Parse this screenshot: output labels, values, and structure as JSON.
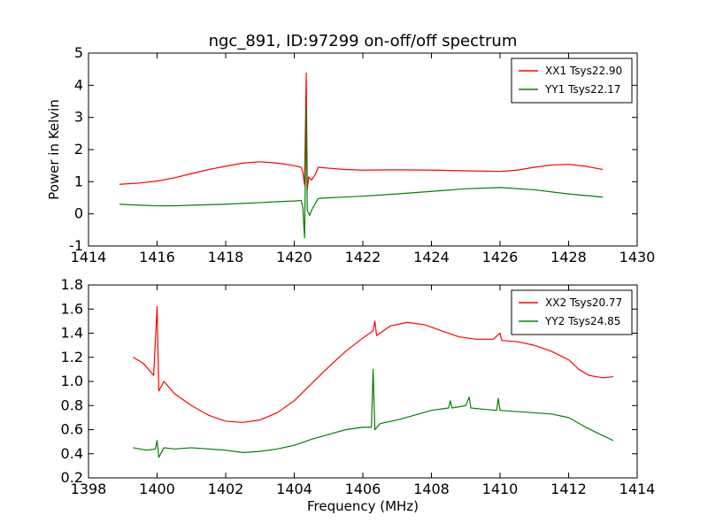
{
  "chart_data": [
    {
      "type": "line",
      "title": "ngc_891, ID:97299 on-off/off spectrum",
      "xlabel": "",
      "ylabel": "Power in Kelvin",
      "xlim": [
        1414,
        1430
      ],
      "ylim": [
        -1,
        5
      ],
      "xticks": [
        1414,
        1416,
        1418,
        1420,
        1422,
        1424,
        1426,
        1428,
        1430
      ],
      "yticks": [
        -1,
        0,
        1,
        2,
        3,
        4,
        5
      ],
      "legend": "top-right",
      "series": [
        {
          "name": "XX1 Tsys22.90",
          "color": "#ff0000",
          "points": [
            [
              1414.9,
              0.92
            ],
            [
              1415.5,
              0.96
            ],
            [
              1416,
              1.02
            ],
            [
              1416.5,
              1.12
            ],
            [
              1417,
              1.25
            ],
            [
              1417.5,
              1.38
            ],
            [
              1418,
              1.48
            ],
            [
              1418.5,
              1.58
            ],
            [
              1419,
              1.62
            ],
            [
              1419.5,
              1.58
            ],
            [
              1420,
              1.5
            ],
            [
              1420.2,
              1.45
            ],
            [
              1420.25,
              1.3
            ],
            [
              1420.3,
              0.9
            ],
            [
              1420.35,
              4.38
            ],
            [
              1420.38,
              0.75
            ],
            [
              1420.42,
              1.15
            ],
            [
              1420.5,
              1.05
            ],
            [
              1420.6,
              1.2
            ],
            [
              1420.7,
              1.45
            ],
            [
              1421,
              1.42
            ],
            [
              1421.5,
              1.38
            ],
            [
              1422,
              1.36
            ],
            [
              1423,
              1.37
            ],
            [
              1424,
              1.36
            ],
            [
              1425,
              1.34
            ],
            [
              1426,
              1.32
            ],
            [
              1426.5,
              1.36
            ],
            [
              1427,
              1.45
            ],
            [
              1427.5,
              1.52
            ],
            [
              1428,
              1.54
            ],
            [
              1428.5,
              1.48
            ],
            [
              1429,
              1.38
            ]
          ]
        },
        {
          "name": "YY1 Tsys22.17",
          "color": "#008000",
          "points": [
            [
              1414.9,
              0.3
            ],
            [
              1415.5,
              0.27
            ],
            [
              1416,
              0.25
            ],
            [
              1416.5,
              0.25
            ],
            [
              1417,
              0.27
            ],
            [
              1418,
              0.3
            ],
            [
              1419,
              0.35
            ],
            [
              1419.5,
              0.38
            ],
            [
              1420,
              0.4
            ],
            [
              1420.2,
              0.42
            ],
            [
              1420.25,
              0.2
            ],
            [
              1420.3,
              -0.75
            ],
            [
              1420.35,
              3.3
            ],
            [
              1420.38,
              0.1
            ],
            [
              1420.45,
              -0.05
            ],
            [
              1420.5,
              0.1
            ],
            [
              1420.6,
              0.3
            ],
            [
              1420.7,
              0.48
            ],
            [
              1421,
              0.5
            ],
            [
              1422,
              0.55
            ],
            [
              1423,
              0.62
            ],
            [
              1424,
              0.7
            ],
            [
              1425,
              0.78
            ],
            [
              1426,
              0.82
            ],
            [
              1427,
              0.75
            ],
            [
              1428,
              0.62
            ],
            [
              1429,
              0.52
            ]
          ]
        }
      ]
    },
    {
      "type": "line",
      "title": "",
      "xlabel": "Frequency (MHz)",
      "ylabel": "",
      "xlim": [
        1398,
        1414
      ],
      "ylim": [
        0.2,
        1.8
      ],
      "xticks": [
        1398,
        1400,
        1402,
        1404,
        1406,
        1408,
        1410,
        1412,
        1414
      ],
      "yticks": [
        0.2,
        0.4,
        0.6,
        0.8,
        1.0,
        1.2,
        1.4,
        1.6,
        1.8
      ],
      "legend": "top-right",
      "series": [
        {
          "name": "XX2 Tsys20.77",
          "color": "#ff0000",
          "points": [
            [
              1399.3,
              1.2
            ],
            [
              1399.6,
              1.15
            ],
            [
              1399.9,
              1.05
            ],
            [
              1400,
              1.62
            ],
            [
              1400.05,
              0.92
            ],
            [
              1400.2,
              1.0
            ],
            [
              1400.5,
              0.9
            ],
            [
              1401,
              0.8
            ],
            [
              1401.5,
              0.72
            ],
            [
              1402,
              0.67
            ],
            [
              1402.5,
              0.66
            ],
            [
              1403,
              0.68
            ],
            [
              1403.5,
              0.74
            ],
            [
              1404,
              0.84
            ],
            [
              1404.5,
              0.98
            ],
            [
              1405,
              1.12
            ],
            [
              1405.5,
              1.25
            ],
            [
              1406,
              1.36
            ],
            [
              1406.3,
              1.42
            ],
            [
              1406.35,
              1.5
            ],
            [
              1406.4,
              1.38
            ],
            [
              1406.8,
              1.46
            ],
            [
              1407.3,
              1.49
            ],
            [
              1407.8,
              1.47
            ],
            [
              1408.3,
              1.42
            ],
            [
              1408.8,
              1.37
            ],
            [
              1409.3,
              1.35
            ],
            [
              1409.8,
              1.35
            ],
            [
              1410,
              1.4
            ],
            [
              1410.05,
              1.34
            ],
            [
              1410.5,
              1.33
            ],
            [
              1411,
              1.3
            ],
            [
              1411.5,
              1.25
            ],
            [
              1412,
              1.18
            ],
            [
              1412.3,
              1.1
            ],
            [
              1412.6,
              1.05
            ],
            [
              1413,
              1.03
            ],
            [
              1413.3,
              1.04
            ]
          ]
        },
        {
          "name": "YY2 Tsys24.85",
          "color": "#008000",
          "points": [
            [
              1399.3,
              0.45
            ],
            [
              1399.7,
              0.43
            ],
            [
              1399.95,
              0.44
            ],
            [
              1400,
              0.51
            ],
            [
              1400.05,
              0.37
            ],
            [
              1400.2,
              0.45
            ],
            [
              1400.5,
              0.44
            ],
            [
              1401,
              0.45
            ],
            [
              1401.5,
              0.44
            ],
            [
              1402,
              0.43
            ],
            [
              1402.5,
              0.41
            ],
            [
              1403,
              0.42
            ],
            [
              1403.5,
              0.44
            ],
            [
              1404,
              0.47
            ],
            [
              1404.5,
              0.52
            ],
            [
              1405,
              0.56
            ],
            [
              1405.5,
              0.6
            ],
            [
              1406,
              0.62
            ],
            [
              1406.25,
              0.62
            ],
            [
              1406.3,
              1.1
            ],
            [
              1406.35,
              0.6
            ],
            [
              1406.5,
              0.65
            ],
            [
              1407,
              0.68
            ],
            [
              1407.5,
              0.72
            ],
            [
              1408,
              0.76
            ],
            [
              1408.5,
              0.78
            ],
            [
              1408.55,
              0.84
            ],
            [
              1408.6,
              0.78
            ],
            [
              1409,
              0.8
            ],
            [
              1409.1,
              0.87
            ],
            [
              1409.15,
              0.78
            ],
            [
              1409.5,
              0.77
            ],
            [
              1409.9,
              0.76
            ],
            [
              1409.95,
              0.86
            ],
            [
              1410,
              0.76
            ],
            [
              1410.5,
              0.75
            ],
            [
              1411,
              0.74
            ],
            [
              1411.5,
              0.73
            ],
            [
              1412,
              0.7
            ],
            [
              1412.5,
              0.62
            ],
            [
              1413,
              0.55
            ],
            [
              1413.3,
              0.51
            ]
          ]
        }
      ]
    }
  ]
}
